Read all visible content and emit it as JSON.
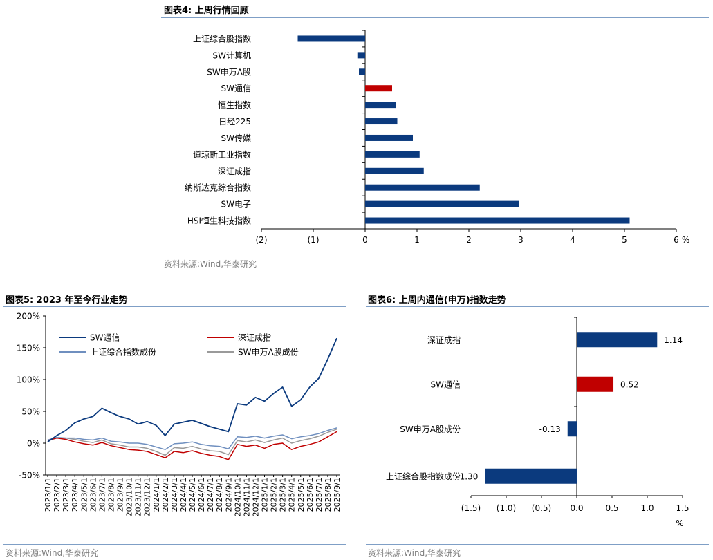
{
  "fig4": {
    "title": "图表4:  上周行情回顾",
    "source": "资料来源:Wind,华泰研究"
  },
  "fig5": {
    "title": "图表5:  2023 年至今行业走势",
    "source": "资料来源:Wind,华泰研究"
  },
  "fig6": {
    "title": "图表6:  上周内通信(申万)指数走势",
    "source": "资料来源:Wind,华泰研究"
  },
  "colors": {
    "blue": "#0b3a7e",
    "red": "#c00000",
    "lightblue": "#6f8fbf",
    "gray": "#9a9a9a",
    "rule": "#7f9fc6"
  },
  "chart_data": [
    {
      "id": "fig4",
      "type": "bar",
      "orientation": "horizontal",
      "categories": [
        "上证综合股指数",
        "SW计算机",
        "SW申万A股",
        "SW通信",
        "恒生指数",
        "日经225",
        "SW传媒",
        "道琼斯工业指数",
        "深证成指",
        "纳斯达克综合指数",
        "SW电子",
        "HSI恒生科技指数"
      ],
      "values": [
        -1.3,
        -0.15,
        -0.12,
        0.52,
        0.6,
        0.62,
        0.92,
        1.05,
        1.13,
        2.21,
        2.96,
        5.1
      ],
      "highlight": "SW通信",
      "xlim": [
        -2,
        6
      ],
      "xticks": [
        "(2)",
        "(1)",
        "0",
        "1",
        "2",
        "3",
        "4",
        "5",
        "6"
      ],
      "xunit": "%"
    },
    {
      "id": "fig5",
      "type": "line",
      "ylim": [
        -50,
        200
      ],
      "yticks": [
        "200%",
        "150%",
        "100%",
        "50%",
        "0%",
        "-50%"
      ],
      "x": [
        "2023/1/1",
        "2023/2/1",
        "2023/3/1",
        "2023/4/1",
        "2023/5/1",
        "2023/6/1",
        "2023/7/1",
        "2023/8/1",
        "2023/9/1",
        "2023/10/1",
        "2023/11/1",
        "2023/12/1",
        "2024/1/1",
        "2024/2/1",
        "2024/3/1",
        "2024/4/1",
        "2024/5/1",
        "2024/6/1",
        "2024/7/1",
        "2024/8/1",
        "2024/9/1",
        "2024/10/1",
        "2024/11/1",
        "2024/12/1",
        "2025/1/1",
        "2025/2/1",
        "2025/3/1",
        "2025/4/1",
        "2025/5/1",
        "2025/6/1",
        "2025/7/1",
        "2025/8/1",
        "2025/9/1"
      ],
      "series": [
        {
          "name": "SW通信",
          "color": "#0b3a7e",
          "values": [
            2,
            12,
            20,
            32,
            38,
            42,
            55,
            48,
            42,
            38,
            30,
            34,
            28,
            12,
            30,
            33,
            36,
            31,
            26,
            22,
            18,
            62,
            60,
            72,
            66,
            78,
            88,
            58,
            68,
            88,
            102,
            132,
            165
          ]
        },
        {
          "name": "深证成指",
          "color": "#c00000",
          "values": [
            4,
            8,
            6,
            2,
            -1,
            -3,
            1,
            -4,
            -7,
            -10,
            -11,
            -13,
            -18,
            -23,
            -13,
            -15,
            -12,
            -16,
            -19,
            -21,
            -26,
            -2,
            -5,
            -3,
            -8,
            -2,
            0,
            -10,
            -5,
            -2,
            2,
            10,
            18
          ]
        },
        {
          "name": "上证综合指数成份",
          "color": "#6f8fbf",
          "values": [
            5,
            9,
            8,
            8,
            6,
            5,
            8,
            3,
            2,
            0,
            0,
            -2,
            -6,
            -10,
            -1,
            0,
            2,
            -2,
            -4,
            -5,
            -9,
            10,
            9,
            11,
            8,
            11,
            13,
            7,
            10,
            12,
            15,
            20,
            24
          ]
        },
        {
          "name": "SW申万A股成份",
          "color": "#9a9a9a",
          "values": [
            4,
            9,
            8,
            6,
            3,
            1,
            5,
            -1,
            -3,
            -6,
            -6,
            -8,
            -13,
            -19,
            -7,
            -8,
            -5,
            -9,
            -12,
            -13,
            -18,
            4,
            2,
            5,
            1,
            5,
            8,
            0,
            4,
            7,
            11,
            17,
            22
          ]
        }
      ]
    },
    {
      "id": "fig6",
      "type": "bar",
      "orientation": "horizontal",
      "categories": [
        "深证成指",
        "SW通信",
        "SW申万A股成份",
        "上证综合股指数成份"
      ],
      "values": [
        1.14,
        0.52,
        -0.13,
        -1.3
      ],
      "value_labels": [
        "1.14",
        "0.52",
        "-0.13",
        "-1.30"
      ],
      "highlight": "SW通信",
      "xlim": [
        -1.5,
        1.5
      ],
      "xticks": [
        "(1.5)",
        "(1.0)",
        "(0.5)",
        "0.0",
        "0.5",
        "1.0",
        "1.5"
      ],
      "xunit": "%"
    }
  ]
}
